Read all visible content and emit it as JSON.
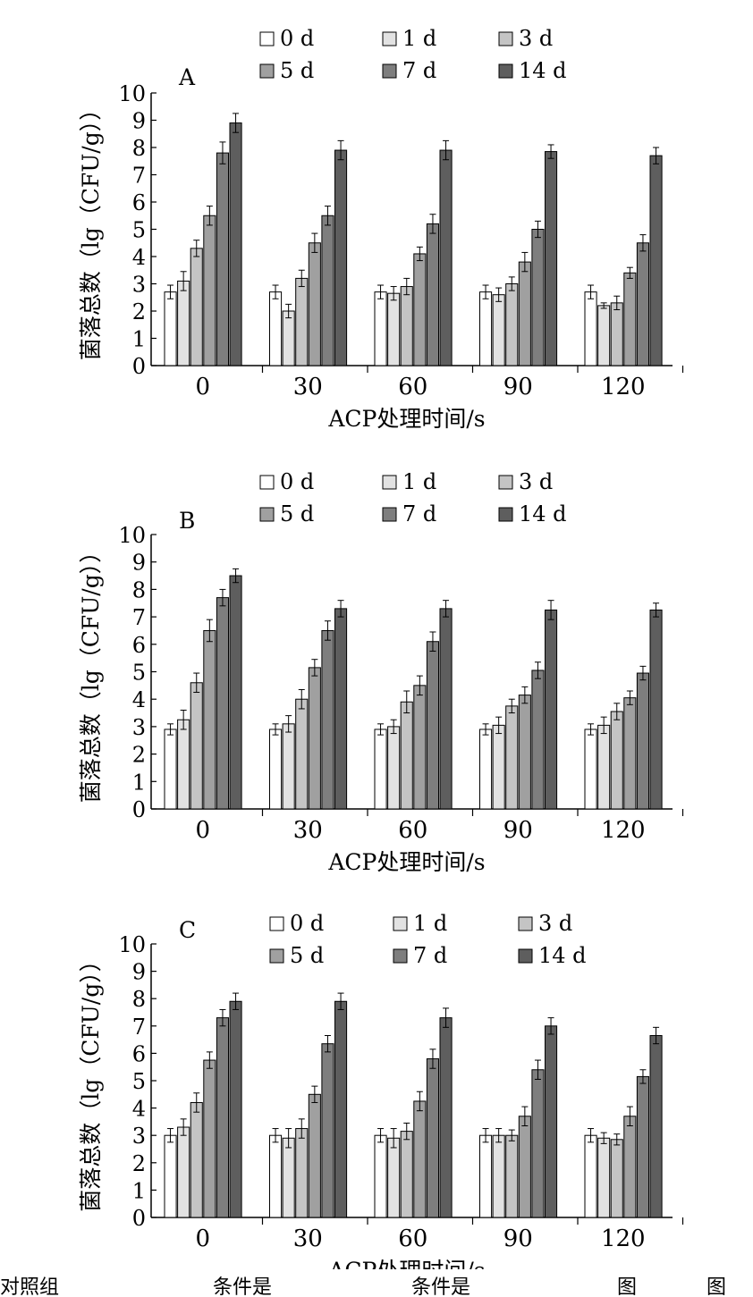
{
  "chart_data": [
    {
      "type": "bar",
      "panel_label": "A",
      "categories": [
        "0",
        "30",
        "60",
        "90",
        "120"
      ],
      "xlabel": "ACP处理时间/s",
      "ylabel": "菌落总数（lg（CFU/g））",
      "ylim": [
        0,
        10
      ],
      "yticks": [
        "0",
        "1",
        "2",
        "3",
        "4",
        "5",
        "6",
        "7",
        "8",
        "9",
        "10"
      ],
      "legend_position": "top",
      "error_bars": true,
      "series": [
        {
          "name": "0 d",
          "color": "#ffffff",
          "values": [
            2.7,
            2.7,
            2.7,
            2.7,
            2.7
          ],
          "errors": [
            0.25,
            0.25,
            0.25,
            0.25,
            0.25
          ]
        },
        {
          "name": "1 d",
          "color": "#e2e2e2",
          "values": [
            3.1,
            2.0,
            2.65,
            2.6,
            2.2
          ],
          "errors": [
            0.35,
            0.25,
            0.25,
            0.25,
            0.1
          ]
        },
        {
          "name": "3 d",
          "color": "#c4c4c4",
          "values": [
            4.3,
            3.2,
            2.9,
            3.0,
            2.3
          ],
          "errors": [
            0.3,
            0.3,
            0.3,
            0.25,
            0.25
          ]
        },
        {
          "name": "5 d",
          "color": "#a0a0a0",
          "values": [
            5.5,
            4.5,
            4.1,
            3.8,
            3.4
          ],
          "errors": [
            0.35,
            0.35,
            0.25,
            0.35,
            0.2
          ]
        },
        {
          "name": "7 d",
          "color": "#7e7e7e",
          "values": [
            7.8,
            5.5,
            5.2,
            5.0,
            4.5
          ],
          "errors": [
            0.4,
            0.35,
            0.35,
            0.3,
            0.3
          ]
        },
        {
          "name": "14 d",
          "color": "#5e5e5e",
          "values": [
            8.9,
            7.9,
            7.9,
            7.85,
            7.7
          ],
          "errors": [
            0.35,
            0.35,
            0.35,
            0.25,
            0.3
          ]
        }
      ]
    },
    {
      "type": "bar",
      "panel_label": "B",
      "categories": [
        "0",
        "30",
        "60",
        "90",
        "120"
      ],
      "xlabel": "ACP处理时间/s",
      "ylabel": "菌落总数（lg（CFU/g））",
      "ylim": [
        0,
        10
      ],
      "yticks": [
        "0",
        "1",
        "2",
        "3",
        "4",
        "5",
        "6",
        "7",
        "8",
        "9",
        "10"
      ],
      "legend_position": "top",
      "error_bars": true,
      "series": [
        {
          "name": "0 d",
          "color": "#ffffff",
          "values": [
            2.9,
            2.9,
            2.9,
            2.9,
            2.9
          ],
          "errors": [
            0.2,
            0.2,
            0.2,
            0.2,
            0.2
          ]
        },
        {
          "name": "1 d",
          "color": "#e2e2e2",
          "values": [
            3.25,
            3.1,
            3.0,
            3.05,
            3.05
          ],
          "errors": [
            0.35,
            0.3,
            0.25,
            0.3,
            0.3
          ]
        },
        {
          "name": "3 d",
          "color": "#c4c4c4",
          "values": [
            4.6,
            4.0,
            3.9,
            3.75,
            3.55
          ],
          "errors": [
            0.35,
            0.35,
            0.4,
            0.25,
            0.3
          ]
        },
        {
          "name": "5 d",
          "color": "#a0a0a0",
          "values": [
            6.5,
            5.15,
            4.5,
            4.15,
            4.05
          ],
          "errors": [
            0.4,
            0.3,
            0.35,
            0.3,
            0.25
          ]
        },
        {
          "name": "7 d",
          "color": "#7e7e7e",
          "values": [
            7.7,
            6.5,
            6.1,
            5.05,
            4.95
          ],
          "errors": [
            0.3,
            0.35,
            0.35,
            0.3,
            0.25
          ]
        },
        {
          "name": "14 d",
          "color": "#5e5e5e",
          "values": [
            8.5,
            7.3,
            7.3,
            7.25,
            7.25
          ],
          "errors": [
            0.25,
            0.3,
            0.3,
            0.35,
            0.25
          ]
        }
      ]
    },
    {
      "type": "bar",
      "panel_label": "C",
      "categories": [
        "0",
        "30",
        "60",
        "90",
        "120"
      ],
      "xlabel": "ACP处理时间/s",
      "ylabel": "菌落总数（lg（CFU/g））",
      "ylim": [
        0,
        10
      ],
      "yticks": [
        "0",
        "1",
        "2",
        "3",
        "4",
        "5",
        "6",
        "7",
        "8",
        "9",
        "10"
      ],
      "legend_position": "top",
      "error_bars": true,
      "series": [
        {
          "name": "0 d",
          "color": "#ffffff",
          "values": [
            3.0,
            3.0,
            3.0,
            3.0,
            3.0
          ],
          "errors": [
            0.25,
            0.25,
            0.25,
            0.25,
            0.25
          ]
        },
        {
          "name": "1 d",
          "color": "#e2e2e2",
          "values": [
            3.3,
            2.9,
            2.9,
            3.0,
            2.9
          ],
          "errors": [
            0.3,
            0.35,
            0.35,
            0.25,
            0.2
          ]
        },
        {
          "name": "3 d",
          "color": "#c4c4c4",
          "values": [
            4.2,
            3.25,
            3.15,
            3.0,
            2.85
          ],
          "errors": [
            0.35,
            0.35,
            0.3,
            0.2,
            0.2
          ]
        },
        {
          "name": "5 d",
          "color": "#a0a0a0",
          "values": [
            5.75,
            4.5,
            4.25,
            3.7,
            3.7
          ],
          "errors": [
            0.3,
            0.3,
            0.35,
            0.35,
            0.35
          ]
        },
        {
          "name": "7 d",
          "color": "#7e7e7e",
          "values": [
            7.3,
            6.35,
            5.8,
            5.4,
            5.15
          ],
          "errors": [
            0.3,
            0.3,
            0.35,
            0.35,
            0.25
          ]
        },
        {
          "name": "14 d",
          "color": "#5e5e5e",
          "values": [
            7.9,
            7.9,
            7.3,
            7.0,
            6.65
          ],
          "errors": [
            0.3,
            0.3,
            0.35,
            0.3,
            0.3
          ]
        }
      ]
    }
  ],
  "footer": {
    "fragments": [
      "对照组",
      "条件是",
      "条件是",
      "图",
      "图"
    ]
  }
}
